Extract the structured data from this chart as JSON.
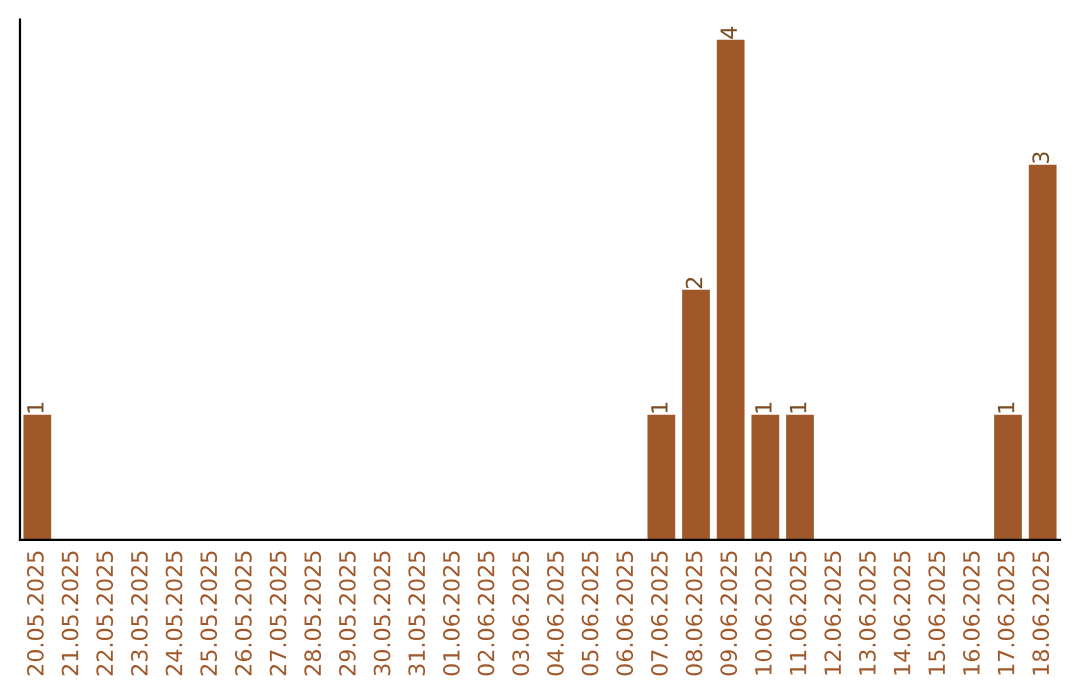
{
  "chart_data": {
    "type": "bar",
    "categories": [
      "20.05.2025",
      "21.05.2025",
      "22.05.2025",
      "23.05.2025",
      "24.05.2025",
      "25.05.2025",
      "26.05.2025",
      "27.05.2025",
      "28.05.2025",
      "29.05.2025",
      "30.05.2025",
      "31.05.2025",
      "01.06.2025",
      "02.06.2025",
      "03.06.2025",
      "04.06.2025",
      "05.06.2025",
      "06.06.2025",
      "07.06.2025",
      "08.06.2025",
      "09.06.2025",
      "10.06.2025",
      "11.06.2025",
      "12.06.2025",
      "13.06.2025",
      "14.06.2025",
      "15.06.2025",
      "16.06.2025",
      "17.06.2025",
      "18.06.2025"
    ],
    "values": [
      1,
      0,
      0,
      0,
      0,
      0,
      0,
      0,
      0,
      0,
      0,
      0,
      0,
      0,
      0,
      0,
      0,
      0,
      1,
      2,
      4,
      1,
      1,
      0,
      0,
      0,
      0,
      0,
      1,
      3
    ],
    "value_labels": [
      "1",
      null,
      null,
      null,
      null,
      null,
      null,
      null,
      null,
      null,
      null,
      null,
      null,
      null,
      null,
      null,
      null,
      null,
      "1",
      "2",
      "4",
      "1",
      "1",
      null,
      null,
      null,
      null,
      null,
      "1",
      "3"
    ],
    "color": "#a0582a",
    "tick_labels": "x",
    "grid": false,
    "legend": false
  }
}
